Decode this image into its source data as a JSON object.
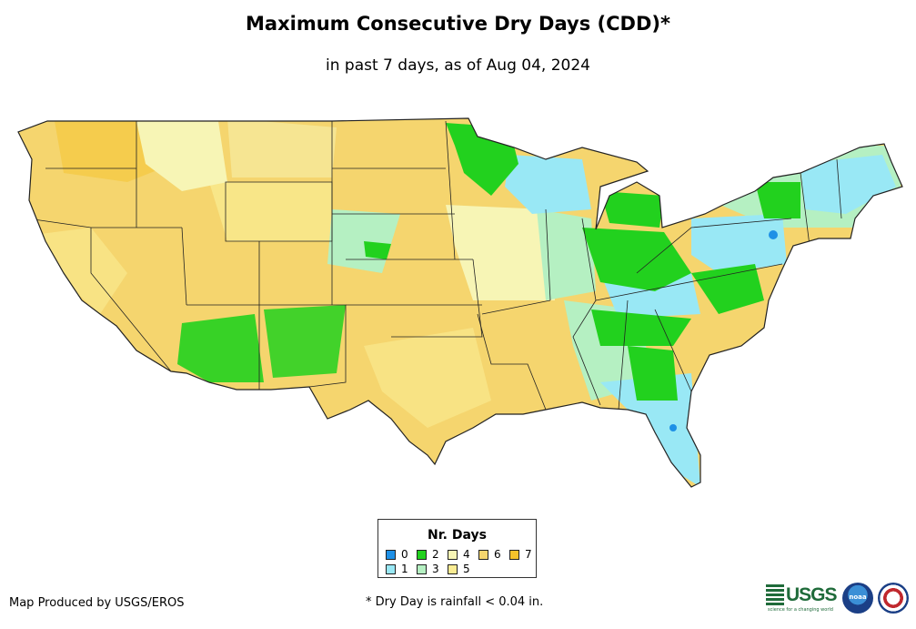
{
  "title": "Maximum Consecutive Dry Days (CDD)*",
  "subtitle": "in past 7 days, as of Aug 04, 2024",
  "legend": {
    "title": "Nr. Days",
    "items": [
      {
        "label": "0",
        "color": "#1e90e6"
      },
      {
        "label": "1",
        "color": "#99e8f5"
      },
      {
        "label": "2",
        "color": "#22d11e"
      },
      {
        "label": "3",
        "color": "#b5f0c2"
      },
      {
        "label": "4",
        "color": "#f7f5b5"
      },
      {
        "label": "5",
        "color": "#faec93"
      },
      {
        "label": "6",
        "color": "#f5d56e"
      },
      {
        "label": "7",
        "color": "#f5c32b"
      }
    ]
  },
  "credit": "Map Produced by USGS/EROS",
  "footnote": "* Dry Day is rainfall < 0.04 in.",
  "logos": {
    "usgs": "USGS",
    "usgs_tagline": "science for a changing world",
    "noaa": "noaa",
    "nws": "national-weather-service-logo"
  },
  "map_colors": {
    "land": "#f5d56e",
    "border": "#222222"
  }
}
